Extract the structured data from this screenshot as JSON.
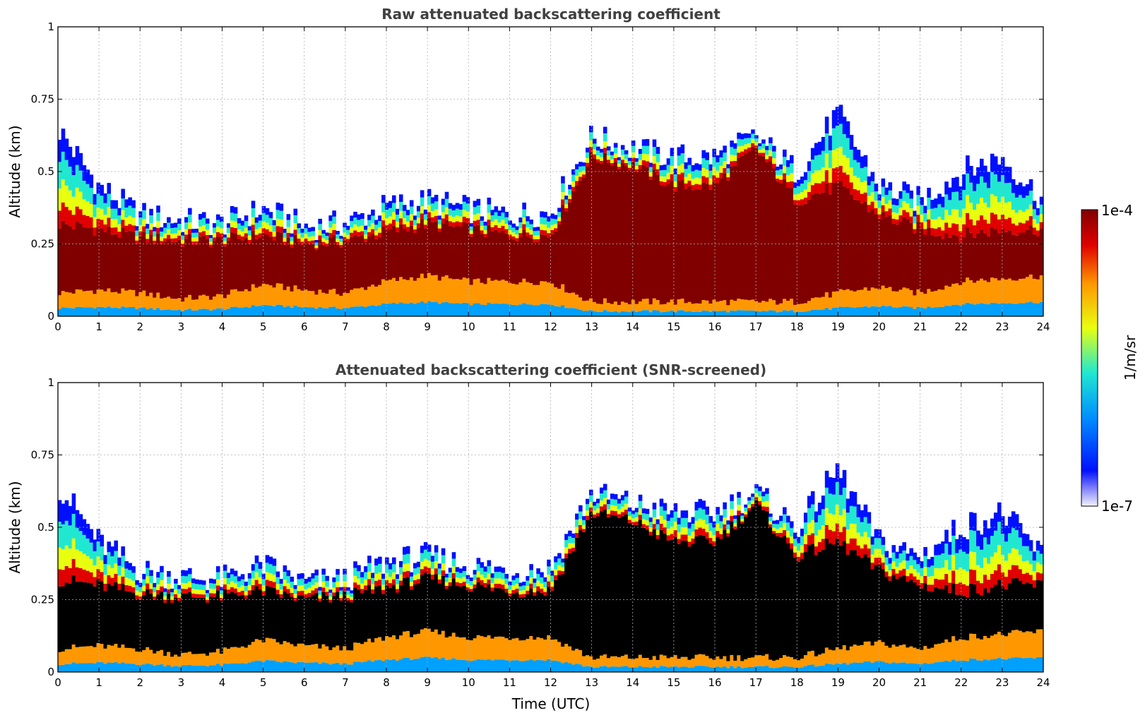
{
  "chart_data": [
    {
      "type": "heatmap",
      "title": "Raw attenuated backscattering coefficient",
      "xlabel": "",
      "ylabel": "Altitude (km)",
      "xlim": [
        0,
        24
      ],
      "ylim": [
        0,
        1
      ],
      "xticks": [
        "0",
        "1",
        "2",
        "3",
        "4",
        "5",
        "6",
        "7",
        "8",
        "9",
        "10",
        "11",
        "12",
        "13",
        "14",
        "15",
        "16",
        "17",
        "18",
        "19",
        "20",
        "21",
        "22",
        "23",
        "24"
      ],
      "yticks": [
        "0",
        "0.25",
        "0.5",
        "0.75",
        "1"
      ],
      "grid": true,
      "screened": false,
      "layer_altitude_km": {
        "hours": [
          0,
          1,
          2,
          3,
          4,
          5,
          6,
          7,
          8,
          9,
          10,
          11,
          12,
          13,
          14,
          15,
          16,
          17,
          18,
          19,
          20,
          21,
          22,
          23,
          24
        ],
        "base": [
          0.08,
          0.09,
          0.08,
          0.06,
          0.07,
          0.11,
          0.09,
          0.08,
          0.12,
          0.14,
          0.12,
          0.12,
          0.12,
          0.05,
          0.05,
          0.05,
          0.05,
          0.05,
          0.05,
          0.08,
          0.1,
          0.08,
          0.12,
          0.13,
          0.14
        ],
        "top": [
          0.32,
          0.3,
          0.27,
          0.26,
          0.26,
          0.28,
          0.25,
          0.26,
          0.29,
          0.32,
          0.3,
          0.28,
          0.28,
          0.55,
          0.52,
          0.45,
          0.45,
          0.58,
          0.4,
          0.45,
          0.35,
          0.3,
          0.28,
          0.3,
          0.3
        ],
        "signal_top": [
          0.65,
          0.45,
          0.35,
          0.33,
          0.32,
          0.37,
          0.31,
          0.32,
          0.38,
          0.4,
          0.37,
          0.35,
          0.36,
          0.62,
          0.58,
          0.55,
          0.55,
          0.62,
          0.5,
          0.7,
          0.45,
          0.4,
          0.5,
          0.55,
          0.4
        ]
      }
    },
    {
      "type": "heatmap",
      "title": "Attenuated backscattering coefficient (SNR-screened)",
      "xlabel": "Time (UTC)",
      "ylabel": "Altitude (km)",
      "xlim": [
        0,
        24
      ],
      "ylim": [
        0,
        1
      ],
      "xticks": [
        "0",
        "1",
        "2",
        "3",
        "4",
        "5",
        "6",
        "7",
        "8",
        "9",
        "10",
        "11",
        "12",
        "13",
        "14",
        "15",
        "16",
        "17",
        "18",
        "19",
        "20",
        "21",
        "22",
        "23",
        "24"
      ],
      "yticks": [
        "0",
        "0.25",
        "0.5",
        "0.75",
        "1"
      ],
      "grid": true,
      "screened": true,
      "layer_altitude_km": {
        "hours": [
          0,
          1,
          2,
          3,
          4,
          5,
          6,
          7,
          8,
          9,
          10,
          11,
          12,
          13,
          14,
          15,
          16,
          17,
          18,
          19,
          20,
          21,
          22,
          23,
          24
        ],
        "base": [
          0.08,
          0.09,
          0.08,
          0.06,
          0.07,
          0.11,
          0.09,
          0.08,
          0.12,
          0.14,
          0.12,
          0.12,
          0.12,
          0.05,
          0.05,
          0.05,
          0.05,
          0.05,
          0.05,
          0.08,
          0.1,
          0.08,
          0.12,
          0.13,
          0.14
        ],
        "top": [
          0.32,
          0.3,
          0.27,
          0.26,
          0.26,
          0.28,
          0.25,
          0.26,
          0.29,
          0.32,
          0.3,
          0.28,
          0.28,
          0.55,
          0.52,
          0.45,
          0.45,
          0.58,
          0.4,
          0.45,
          0.35,
          0.3,
          0.28,
          0.3,
          0.3
        ],
        "signal_top": [
          0.65,
          0.45,
          0.35,
          0.33,
          0.32,
          0.37,
          0.31,
          0.32,
          0.38,
          0.4,
          0.37,
          0.35,
          0.36,
          0.62,
          0.58,
          0.55,
          0.55,
          0.62,
          0.5,
          0.7,
          0.45,
          0.4,
          0.5,
          0.55,
          0.4
        ]
      }
    }
  ],
  "colorbar": {
    "label": "1/m/sr",
    "max_label": "1e-4",
    "min_label": "1e-7",
    "colormap": "jet",
    "colors": [
      "#ececff",
      "#0010ff",
      "#00a0ff",
      "#20e8d0",
      "#e8ff10",
      "#ff9800",
      "#e00000",
      "#800000"
    ]
  }
}
